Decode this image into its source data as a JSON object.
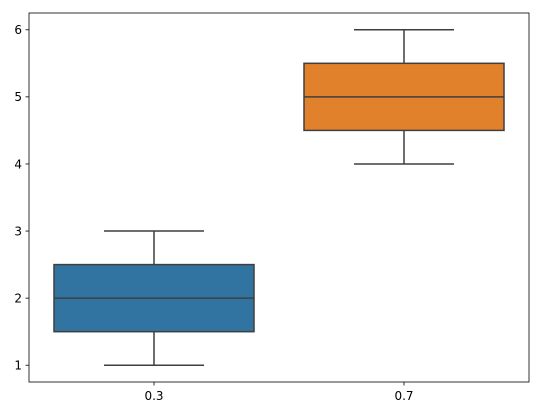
{
  "chart_data": {
    "type": "box",
    "categories": [
      "0.3",
      "0.7"
    ],
    "boxes": [
      {
        "category": "0.3",
        "min": 1,
        "q1": 1.5,
        "median": 2,
        "q3": 2.5,
        "max": 3,
        "color": "#3274a1"
      },
      {
        "category": "0.7",
        "min": 4,
        "q1": 4.5,
        "median": 5,
        "q3": 5.5,
        "max": 6,
        "color": "#e1812c"
      }
    ],
    "y_ticks": [
      "1",
      "2",
      "3",
      "4",
      "5",
      "6"
    ],
    "ylim": [
      0.75,
      6.25
    ],
    "title": "",
    "xlabel": "",
    "ylabel": "",
    "grid": false,
    "line_color": "#3f3f3f"
  }
}
